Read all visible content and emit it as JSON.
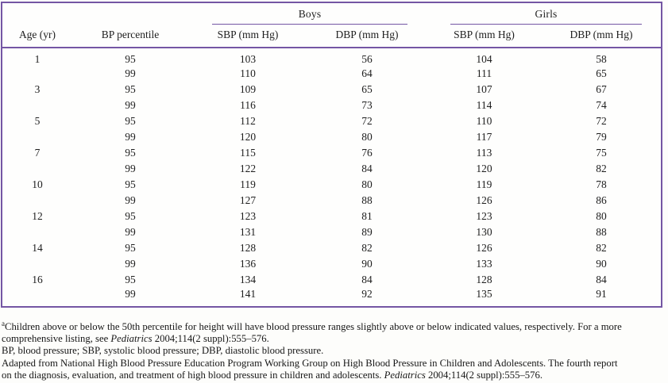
{
  "colors": {
    "rule_purple": "#7456a4",
    "text": "#1e1e1e"
  },
  "table": {
    "groups": [
      {
        "label": "Boys"
      },
      {
        "label": "Girls"
      }
    ],
    "columns": [
      "Age (yr)",
      "BP percentile",
      "SBP (mm Hg)",
      "DBP (mm Hg)",
      "SBP (mm Hg)",
      "DBP (mm Hg)"
    ],
    "rows": [
      {
        "age": "1",
        "percentile": "95",
        "boys_sbp": "103",
        "boys_dbp": "56",
        "girls_sbp": "104",
        "girls_dbp": "58"
      },
      {
        "age": "",
        "percentile": "99",
        "boys_sbp": "110",
        "boys_dbp": "64",
        "girls_sbp": "111",
        "girls_dbp": "65"
      },
      {
        "age": "3",
        "percentile": "95",
        "boys_sbp": "109",
        "boys_dbp": "65",
        "girls_sbp": "107",
        "girls_dbp": "67"
      },
      {
        "age": "",
        "percentile": "99",
        "boys_sbp": "116",
        "boys_dbp": "73",
        "girls_sbp": "114",
        "girls_dbp": "74"
      },
      {
        "age": "5",
        "percentile": "95",
        "boys_sbp": "112",
        "boys_dbp": "72",
        "girls_sbp": "110",
        "girls_dbp": "72"
      },
      {
        "age": "",
        "percentile": "99",
        "boys_sbp": "120",
        "boys_dbp": "80",
        "girls_sbp": "117",
        "girls_dbp": "79"
      },
      {
        "age": "7",
        "percentile": "95",
        "boys_sbp": "115",
        "boys_dbp": "76",
        "girls_sbp": "113",
        "girls_dbp": "75"
      },
      {
        "age": "",
        "percentile": "99",
        "boys_sbp": "122",
        "boys_dbp": "84",
        "girls_sbp": "120",
        "girls_dbp": "82"
      },
      {
        "age": "10",
        "percentile": "95",
        "boys_sbp": "119",
        "boys_dbp": "80",
        "girls_sbp": "119",
        "girls_dbp": "78"
      },
      {
        "age": "",
        "percentile": "99",
        "boys_sbp": "127",
        "boys_dbp": "88",
        "girls_sbp": "126",
        "girls_dbp": "86"
      },
      {
        "age": "12",
        "percentile": "95",
        "boys_sbp": "123",
        "boys_dbp": "81",
        "girls_sbp": "123",
        "girls_dbp": "80"
      },
      {
        "age": "",
        "percentile": "99",
        "boys_sbp": "131",
        "boys_dbp": "89",
        "girls_sbp": "130",
        "girls_dbp": "88"
      },
      {
        "age": "14",
        "percentile": "95",
        "boys_sbp": "128",
        "boys_dbp": "82",
        "girls_sbp": "126",
        "girls_dbp": "82"
      },
      {
        "age": "",
        "percentile": "99",
        "boys_sbp": "136",
        "boys_dbp": "90",
        "girls_sbp": "133",
        "girls_dbp": "90"
      },
      {
        "age": "16",
        "percentile": "95",
        "boys_sbp": "134",
        "boys_dbp": "84",
        "girls_sbp": "128",
        "girls_dbp": "84"
      },
      {
        "age": "",
        "percentile": "99",
        "boys_sbp": "141",
        "boys_dbp": "92",
        "girls_sbp": "135",
        "girls_dbp": "91"
      }
    ]
  },
  "footnotes": [
    [
      {
        "sup": true,
        "text": "a"
      },
      {
        "text": "Children above or below the 50th percentile for height will have blood pressure ranges slightly above or below indicated values, respectively. For a more"
      }
    ],
    [
      {
        "text": "comprehensive listing, see "
      },
      {
        "italic": true,
        "text": "Pediatrics"
      },
      {
        "text": " 2004;114(2 suppl):555–576."
      }
    ],
    [
      {
        "text": "BP, blood pressure; SBP, systolic blood pressure; DBP, diastolic blood pressure."
      }
    ],
    [
      {
        "text": "Adapted from National High Blood Pressure Education Program Working Group on High Blood Pressure in Children and Adolescents. The fourth report"
      }
    ],
    [
      {
        "text": "on the diagnosis, evaluation, and treatment of high blood pressure in children and adolescents. "
      },
      {
        "italic": true,
        "text": "Pediatrics"
      },
      {
        "text": " 2004;114(2 suppl):555–576."
      }
    ]
  ]
}
